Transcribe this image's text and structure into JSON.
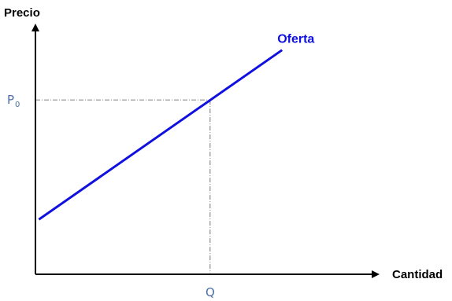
{
  "chart_data": {
    "type": "line",
    "ylabel": "Precio",
    "xlabel": "Cantidad",
    "xlim": [
      0,
      10
    ],
    "ylim": [
      0,
      10
    ],
    "series": [
      {
        "name": "Oferta",
        "x": [
          0.1,
          7.2
        ],
        "y": [
          2.2,
          9.0
        ]
      }
    ],
    "equilibrium": {
      "x": 5.1,
      "y": 7.0,
      "x_label": "Q",
      "y_label": "P",
      "y_label_subscript": "0"
    },
    "colors": {
      "series": "#1010e0",
      "axis": "#000000",
      "guide": "#555555",
      "guide_label": "#4a6fa5"
    },
    "grid": false
  }
}
